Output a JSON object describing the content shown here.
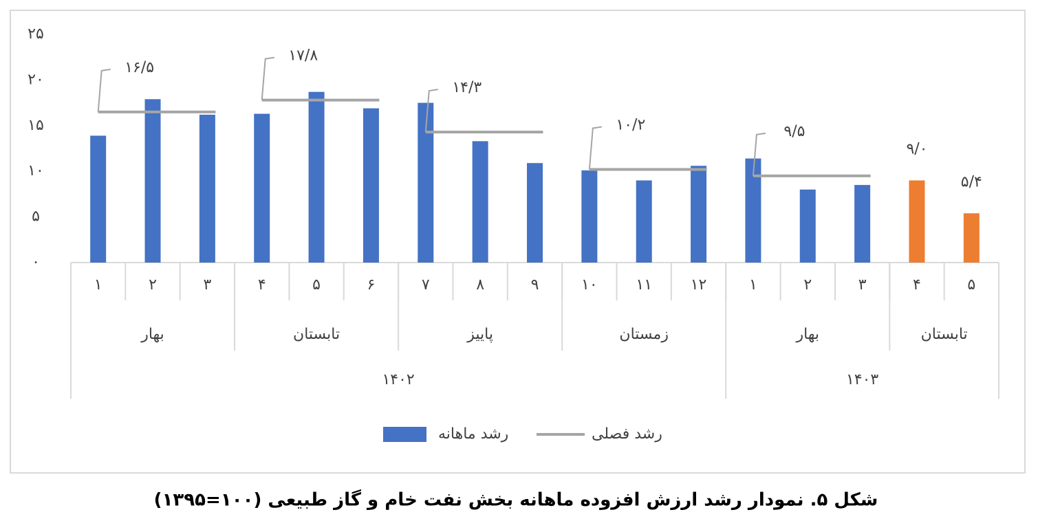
{
  "chart_data": {
    "type": "bar",
    "title": "شکل ۵. نمودار رشد ارزش افزوده ماهانه بخش نفت خام و گاز طبیعی (۱۰۰=۱۳۹۵)",
    "years": [
      {
        "label": "۱۴۰۲",
        "seasons": [
          {
            "label": "بهار",
            "months": [
              "۱",
              "۲",
              "۳"
            ]
          },
          {
            "label": "تابستان",
            "months": [
              "۴",
              "۵",
              "۶"
            ]
          },
          {
            "label": "پاییز",
            "months": [
              "۷",
              "۸",
              "۹"
            ]
          },
          {
            "label": "زمستان",
            "months": [
              "۱۰",
              "۱۱",
              "۱۲"
            ]
          }
        ]
      },
      {
        "label": "۱۴۰۳",
        "seasons": [
          {
            "label": "بهار",
            "months": [
              "۱",
              "۲",
              "۳"
            ]
          },
          {
            "label": "تابستان",
            "months": [
              "۴",
              "۵"
            ]
          }
        ]
      }
    ],
    "series": [
      {
        "name": "رشد ماهانه",
        "type": "bar",
        "color": "#4472c4",
        "point_colors": [
          "#4472c4",
          "#4472c4",
          "#4472c4",
          "#4472c4",
          "#4472c4",
          "#4472c4",
          "#4472c4",
          "#4472c4",
          "#4472c4",
          "#4472c4",
          "#4472c4",
          "#4472c4",
          "#4472c4",
          "#4472c4",
          "#4472c4",
          "#ed7d31",
          "#ed7d31"
        ],
        "values": [
          13.9,
          17.9,
          16.2,
          16.3,
          18.7,
          16.9,
          17.5,
          13.3,
          10.9,
          10.1,
          9.0,
          10.6,
          11.4,
          8.0,
          8.5,
          9.0,
          5.4
        ],
        "value_labels": [
          null,
          null,
          null,
          null,
          null,
          null,
          null,
          null,
          null,
          null,
          null,
          null,
          null,
          null,
          null,
          "۹/۰",
          "۵/۴"
        ]
      },
      {
        "name": "رشد فصلی",
        "type": "line",
        "color": "#a5a5a5",
        "values": [
          16.5,
          17.8,
          14.3,
          10.2,
          9.5
        ],
        "value_labels": [
          "۱۶/۵",
          "۱۷/۸",
          "۱۴/۳",
          "۱۰/۲",
          "۹/۵"
        ]
      }
    ],
    "ylim": [
      0,
      25
    ],
    "yticks": [
      {
        "value": 0,
        "label": "۰"
      },
      {
        "value": 5,
        "label": "۵"
      },
      {
        "value": 10,
        "label": "۱۰"
      },
      {
        "value": 15,
        "label": "۱۵"
      },
      {
        "value": 20,
        "label": "۲۰"
      },
      {
        "value": 25,
        "label": "۲۵"
      }
    ]
  }
}
